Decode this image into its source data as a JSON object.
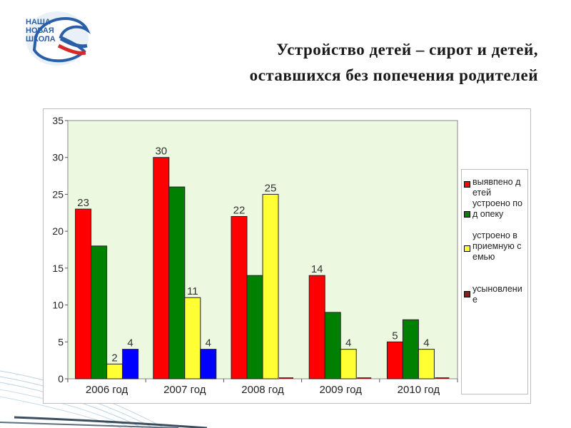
{
  "logo": {
    "line1": "НАША",
    "line2": "НОВАЯ",
    "line3": "ШКОЛА"
  },
  "title": {
    "line1": "Устройство  детей – сирот  и  детей,",
    "line2": "оставшихся  без  попечения  родителей"
  },
  "colors": {
    "red": "#ff0000",
    "green": "#008000",
    "yellow": "#ffff33",
    "blue": "#0000ff",
    "darkred": "#8b1a1a",
    "plot_bg": "#ecf9e0",
    "plot_border": "#8a8a8a"
  },
  "chart_data": {
    "type": "bar",
    "title": "",
    "xlabel": "",
    "ylabel": "",
    "categories": [
      "2006 год",
      "2007 год",
      "2008 год",
      "2009 год",
      "2010 год"
    ],
    "ylim": [
      0,
      35
    ],
    "yticks": [
      0,
      5,
      10,
      15,
      20,
      25,
      30,
      35
    ],
    "grid": false,
    "legend_position": "right",
    "series": [
      {
        "name": "выявлено детей",
        "color": "#ff0000",
        "values": [
          23,
          30,
          22,
          14,
          5
        ],
        "labels": [
          "23",
          "30",
          "22",
          "14",
          "5"
        ]
      },
      {
        "name": "устроено под опеку",
        "color": "#008000",
        "values": [
          18,
          26,
          14,
          9,
          8
        ],
        "labels": [
          "",
          "",
          "",
          "",
          ""
        ]
      },
      {
        "name": "устроено в приемную семью",
        "color": "#ffff33",
        "values": [
          2,
          11,
          25,
          4,
          4
        ],
        "labels": [
          "2",
          "11",
          "25",
          "4",
          "4"
        ]
      },
      {
        "name": "усыновление",
        "color": "#0000ff",
        "values": [
          4,
          4,
          0,
          0,
          0
        ],
        "labels": [
          "4",
          "4",
          "",
          "",
          ""
        ]
      }
    ]
  },
  "legend": {
    "items": [
      {
        "text": "выявпено детей",
        "color": "#ff0000"
      },
      {
        "text": "устроено под опеку",
        "color": "#008000"
      },
      {
        "text": "устроено в приемную семью",
        "color": "#ffff33"
      },
      {
        "text": "усыновление",
        "color": "#8b1a1a"
      }
    ]
  }
}
